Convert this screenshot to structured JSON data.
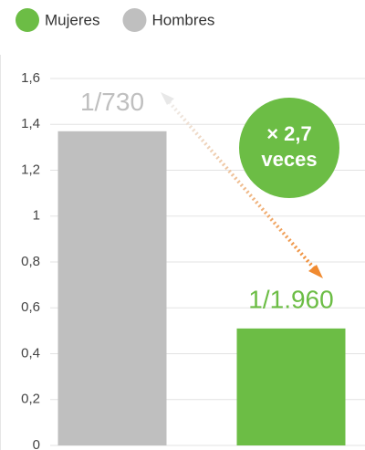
{
  "chart_data": {
    "type": "bar",
    "categories": [
      null,
      null
    ],
    "series": [
      {
        "name": "Mujeres",
        "color": "#6cbd45",
        "values": [
          null,
          0.51
        ],
        "value_labels": [
          null,
          "1/1.960"
        ]
      },
      {
        "name": "Hombres",
        "color": "#bfbfbf",
        "values": [
          1.37,
          null
        ],
        "value_labels": [
          "1/730",
          null
        ]
      }
    ],
    "annotation": [
      "× 2,7",
      "veces"
    ],
    "ylim": [
      0,
      1.6
    ],
    "yticks": [
      0,
      {
        "value": 0.2,
        "label": "0,2"
      },
      {
        "value": 0.4,
        "label": "0,4"
      },
      {
        "value": 0.6,
        "label": "0,6"
      },
      {
        "value": 0.8,
        "label": "0,8"
      },
      1,
      {
        "value": 1.2,
        "label": "1,2"
      },
      {
        "value": 1.4,
        "label": "1,4"
      },
      {
        "value": 1.6,
        "label": "1,6"
      }
    ],
    "grid": true
  }
}
